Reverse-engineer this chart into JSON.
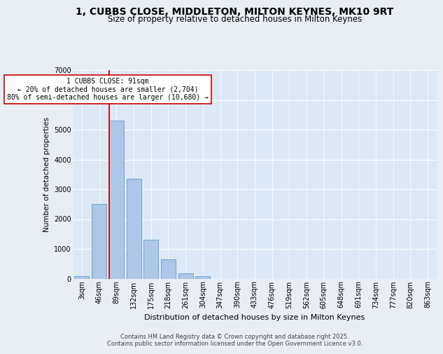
{
  "title_line1": "1, CUBBS CLOSE, MIDDLETON, MILTON KEYNES, MK10 9RT",
  "title_line2": "Size of property relative to detached houses in Milton Keynes",
  "xlabel": "Distribution of detached houses by size in Milton Keynes",
  "ylabel": "Number of detached properties",
  "categories": [
    "3sqm",
    "46sqm",
    "89sqm",
    "132sqm",
    "175sqm",
    "218sqm",
    "261sqm",
    "304sqm",
    "347sqm",
    "390sqm",
    "433sqm",
    "476sqm",
    "519sqm",
    "562sqm",
    "605sqm",
    "648sqm",
    "691sqm",
    "734sqm",
    "777sqm",
    "820sqm",
    "863sqm"
  ],
  "values": [
    75,
    2500,
    5300,
    3350,
    1300,
    650,
    175,
    75,
    0,
    0,
    0,
    0,
    0,
    0,
    0,
    0,
    0,
    0,
    0,
    0,
    0
  ],
  "bar_color": "#aec6e8",
  "bar_edge_color": "#5a9fd4",
  "vline_color": "#cc0000",
  "annotation_text": "1 CUBBS CLOSE: 91sqm\n← 20% of detached houses are smaller (2,704)\n80% of semi-detached houses are larger (10,680) →",
  "annotation_box_color": "#ffffff",
  "annotation_box_edge_color": "#cc0000",
  "ylim": [
    0,
    7000
  ],
  "yticks": [
    0,
    1000,
    2000,
    3000,
    4000,
    5000,
    6000,
    7000
  ],
  "bg_color": "#e8eef4",
  "plot_bg_color": "#dce8f5",
  "footer_text": "Contains HM Land Registry data © Crown copyright and database right 2025.\nContains public sector information licensed under the Open Government Licence v3.0.",
  "title_fontsize": 10,
  "subtitle_fontsize": 8.5,
  "xlabel_fontsize": 8,
  "ylabel_fontsize": 7.5,
  "tick_fontsize": 7,
  "annotation_fontsize": 7,
  "footer_fontsize": 6
}
